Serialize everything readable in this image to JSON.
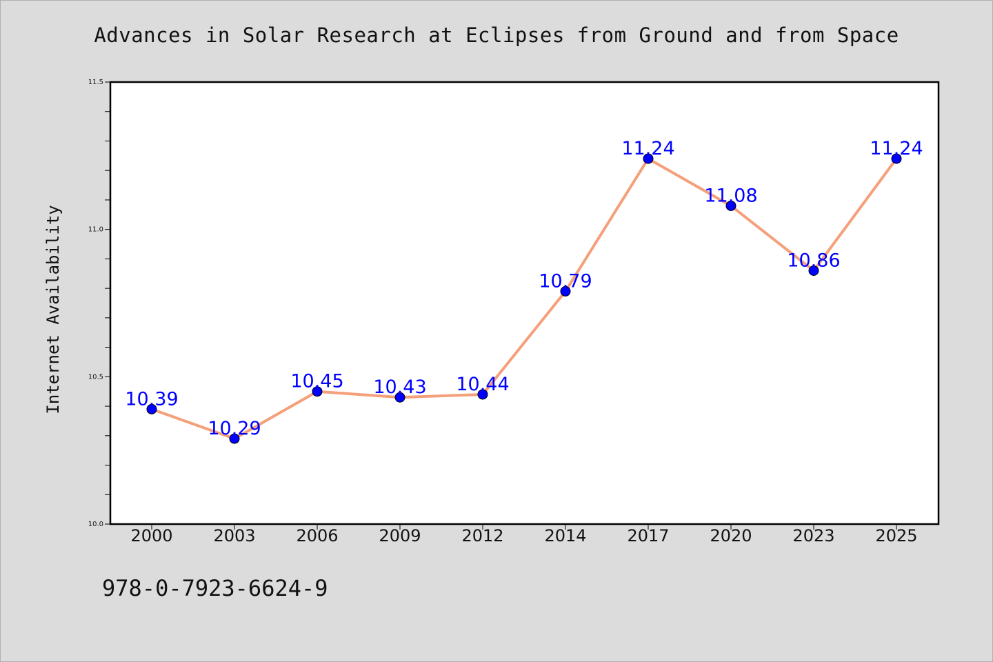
{
  "chart_data": {
    "type": "line",
    "title": "Advances in Solar Research at Eclipses from Ground and from Space",
    "xlabel": "",
    "ylabel": "Internet Availability",
    "categories": [
      "2000",
      "2003",
      "2006",
      "2009",
      "2012",
      "2014",
      "2017",
      "2020",
      "2023",
      "2025"
    ],
    "series": [
      {
        "values": [
          10.39,
          10.29,
          10.45,
          10.43,
          10.44,
          10.79,
          11.24,
          11.08,
          10.86,
          11.24
        ],
        "data_labels": [
          "10.39",
          "10.29",
          "10.45",
          "10.43",
          "10.44",
          "10.79",
          "11.24",
          "11.08",
          "10.86",
          "11.24"
        ],
        "line_color": "#f4a07a",
        "marker_color": "#0000ff",
        "label_color": "#0000ff"
      }
    ],
    "ylim": [
      10.0,
      11.5
    ],
    "yticks": [
      "10.0",
      "10.5",
      "11.0",
      "11.5"
    ],
    "grid": false,
    "legend": "none"
  },
  "footer": {
    "isbn": "978-0-7923-6624-9"
  }
}
